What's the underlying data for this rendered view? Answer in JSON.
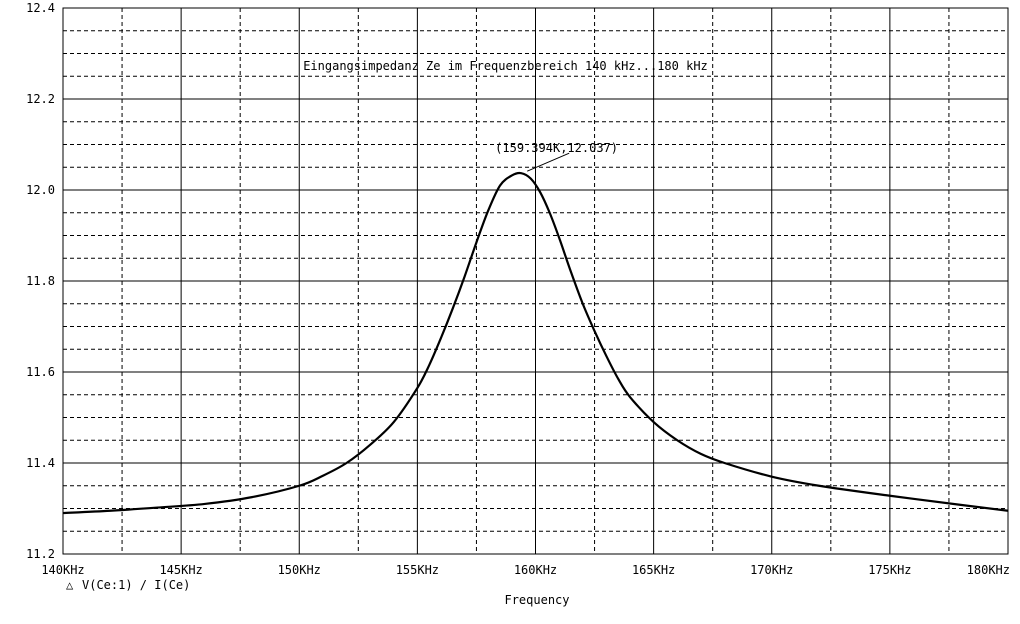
{
  "chart_data": {
    "type": "line",
    "title": "Eingangsimpedanz Ze im Frequenzbereich 140 kHz...180 kHz",
    "xlabel": "Frequency",
    "trace_label": "V(Ce:1) / I(Ce)",
    "trace_marker_symbol": "△",
    "xlim": [
      140,
      180
    ],
    "ylim": [
      11.2,
      12.4
    ],
    "x_ticks": [
      140,
      145,
      150,
      155,
      160,
      165,
      170,
      175,
      180
    ],
    "x_tick_labels": [
      "140KHz",
      "145KHz",
      "150KHz",
      "155KHz",
      "160KHz",
      "165KHz",
      "170KHz",
      "175KHz",
      "180KHz"
    ],
    "y_ticks": [
      11.2,
      11.4,
      11.6,
      11.8,
      12.0,
      12.2,
      12.4
    ],
    "y_tick_labels": [
      "11.2",
      "11.4",
      "11.6",
      "11.8",
      "12.0",
      "12.2",
      "12.4"
    ],
    "grid": true,
    "series": [
      {
        "x": [
          140,
          142,
          144,
          146,
          148,
          150,
          151,
          152,
          153,
          154,
          155,
          155.5,
          156,
          156.5,
          157,
          157.5,
          158,
          158.5,
          159,
          159.394,
          159.8,
          160.2,
          160.6,
          161,
          161.5,
          162,
          162.5,
          163,
          163.5,
          164,
          165,
          166,
          167,
          168,
          170,
          172,
          175,
          178,
          180
        ],
        "y": [
          11.29,
          11.295,
          11.302,
          11.31,
          11.325,
          11.35,
          11.372,
          11.4,
          11.44,
          11.49,
          11.565,
          11.615,
          11.675,
          11.74,
          11.81,
          11.885,
          11.955,
          12.01,
          12.032,
          12.037,
          12.025,
          11.995,
          11.95,
          11.895,
          11.82,
          11.75,
          11.69,
          11.635,
          11.585,
          11.545,
          11.49,
          11.45,
          11.42,
          11.4,
          11.37,
          11.35,
          11.328,
          11.308,
          11.295
        ]
      }
    ],
    "annotations": [
      {
        "text": "(159.394K,12.037)",
        "x": 159.394,
        "y": 12.037
      }
    ]
  }
}
